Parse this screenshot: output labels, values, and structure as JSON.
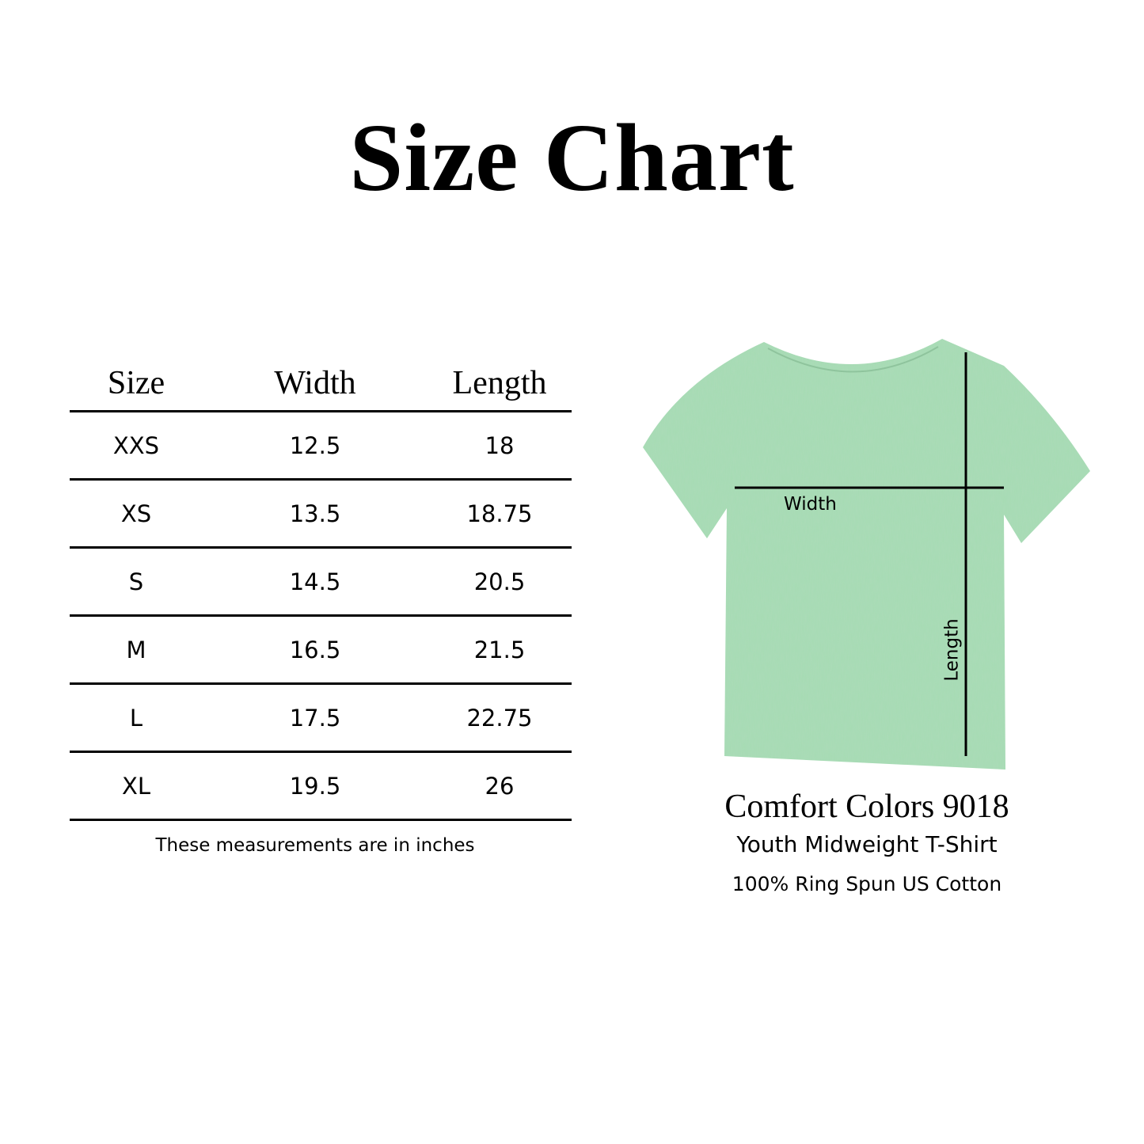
{
  "title": "Size Chart",
  "table": {
    "headers": [
      "Size",
      "Width",
      "Length"
    ],
    "rows": [
      [
        "XXS",
        "12.5",
        "18"
      ],
      [
        "XS",
        "13.5",
        "18.75"
      ],
      [
        "S",
        "14.5",
        "20.5"
      ],
      [
        "M",
        "16.5",
        "21.5"
      ],
      [
        "L",
        "17.5",
        "22.75"
      ],
      [
        "XL",
        "19.5",
        "26"
      ]
    ],
    "note": "These measurements are in inches"
  },
  "diagram": {
    "width_label": "Width",
    "length_label": "Length",
    "shirt_color": "#a6dcb4"
  },
  "product": {
    "name": "Comfort Colors 9018",
    "description": "Youth Midweight T-Shirt",
    "material": "100% Ring Spun US Cotton"
  }
}
